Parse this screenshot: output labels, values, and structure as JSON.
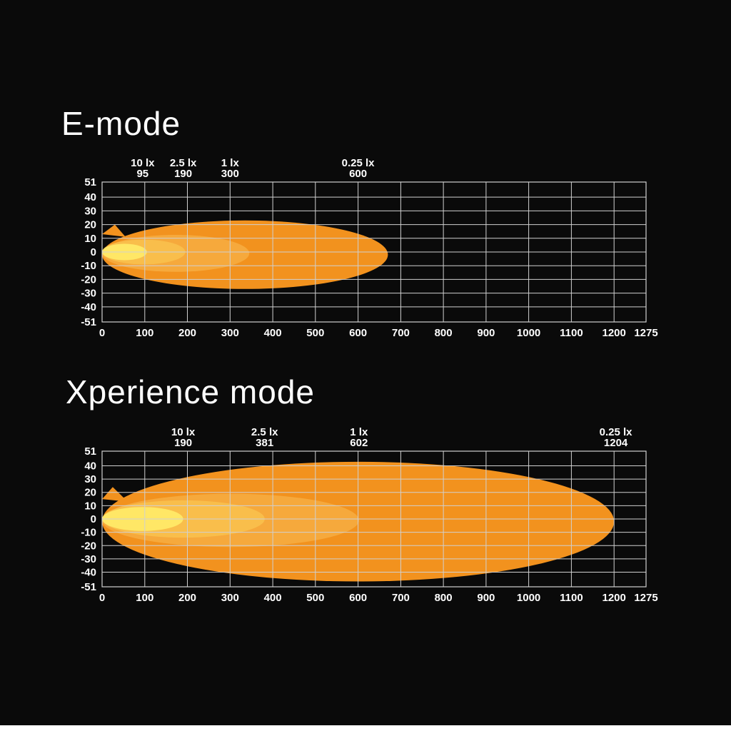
{
  "page": {
    "background": "#0a0a0a",
    "grid_color": "#d0d0d0",
    "text_color": "#ffffff",
    "footer_bar_color": "#ffffff"
  },
  "chart_data": [
    {
      "type": "area",
      "title": "E-mode",
      "xlim": [
        0,
        1275
      ],
      "ylim": [
        -51,
        51
      ],
      "x_ticks": [
        0,
        100,
        200,
        300,
        400,
        500,
        600,
        700,
        800,
        900,
        1000,
        1100,
        1200,
        1275
      ],
      "y_ticks": [
        51,
        40,
        30,
        20,
        10,
        0,
        -10,
        -20,
        -30,
        -40,
        -51
      ],
      "grid": true,
      "lux_markers": [
        {
          "label": "10 lx",
          "distance": 95
        },
        {
          "label": "2.5 lx",
          "distance": 190
        },
        {
          "label": "1 lx",
          "distance": 300
        },
        {
          "label": "0.25 lx",
          "distance": 600
        }
      ],
      "contours": [
        {
          "name": "outer-beam",
          "reach": 670,
          "half_height": 25,
          "center_y": -2,
          "color": "#f2921e"
        },
        {
          "name": "mid-beam",
          "reach": 345,
          "half_height": 13.5,
          "center_y": -1,
          "color": "#f6a93c"
        },
        {
          "name": "inner-beam",
          "reach": 195,
          "half_height": 9,
          "center_y": 0,
          "color": "#f9be4b"
        },
        {
          "name": "hot-spot",
          "reach": 105,
          "half_height": 6,
          "center_y": 0,
          "color": "#ffe766"
        }
      ],
      "spike": [
        [
          0,
          13
        ],
        [
          30,
          20
        ],
        [
          55,
          11
        ]
      ]
    },
    {
      "type": "area",
      "title": "Xperience mode",
      "xlim": [
        0,
        1275
      ],
      "ylim": [
        -51,
        51
      ],
      "x_ticks": [
        0,
        100,
        200,
        300,
        400,
        500,
        600,
        700,
        800,
        900,
        1000,
        1100,
        1200,
        1275
      ],
      "y_ticks": [
        51,
        40,
        30,
        20,
        10,
        0,
        -10,
        -20,
        -30,
        -40,
        -51
      ],
      "grid": true,
      "lux_markers": [
        {
          "label": "10 lx",
          "distance": 190
        },
        {
          "label": "2.5 lx",
          "distance": 381
        },
        {
          "label": "1 lx",
          "distance": 602
        },
        {
          "label": "0.25 lx",
          "distance": 1204
        }
      ],
      "contours": [
        {
          "name": "outer-beam",
          "reach": 1200,
          "half_height": 45,
          "center_y": -2,
          "color": "#f2921e"
        },
        {
          "name": "mid-beam",
          "reach": 602,
          "half_height": 20,
          "center_y": -1,
          "color": "#f6a93c"
        },
        {
          "name": "inner-beam",
          "reach": 381,
          "half_height": 14,
          "center_y": 0,
          "color": "#f9be4b"
        },
        {
          "name": "hot-spot",
          "reach": 190,
          "half_height": 9,
          "center_y": 0,
          "color": "#ffe766"
        }
      ],
      "spike": [
        [
          0,
          15
        ],
        [
          25,
          24
        ],
        [
          60,
          13
        ]
      ]
    }
  ]
}
